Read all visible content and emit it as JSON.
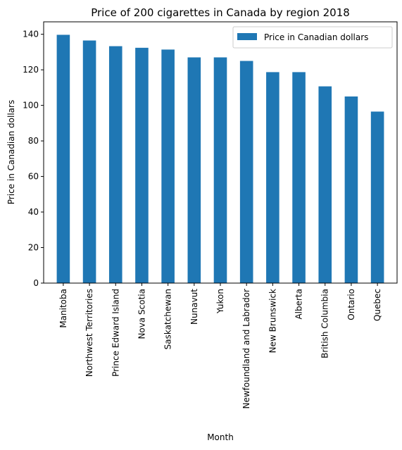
{
  "chart_data": {
    "type": "bar",
    "title": "Price of 200 cigarettes in Canada by region 2018",
    "xlabel": "Month",
    "ylabel": "Price in Canadian dollars",
    "categories": [
      "Manitoba",
      "Northwest Territories",
      "Prince Edward Island",
      "Nova Scotia",
      "Saskatchewan",
      "Nunavut",
      "Yukon",
      "Newfoundland and Labrador",
      "New Brunswick",
      "Alberta",
      "British Columbia",
      "Ontario",
      "Quebec"
    ],
    "series": [
      {
        "name": "Price in Canadian dollars",
        "values": [
          139.7,
          136.5,
          133.3,
          132.4,
          131.4,
          127.0,
          127.0,
          125.0,
          118.7,
          118.7,
          110.7,
          105.0,
          96.5
        ],
        "color": "#1f77b4"
      }
    ],
    "ylim": [
      0,
      147
    ],
    "yticks": [
      0,
      20,
      40,
      60,
      80,
      100,
      120,
      140
    ],
    "grid": false,
    "legend": "top-right"
  }
}
